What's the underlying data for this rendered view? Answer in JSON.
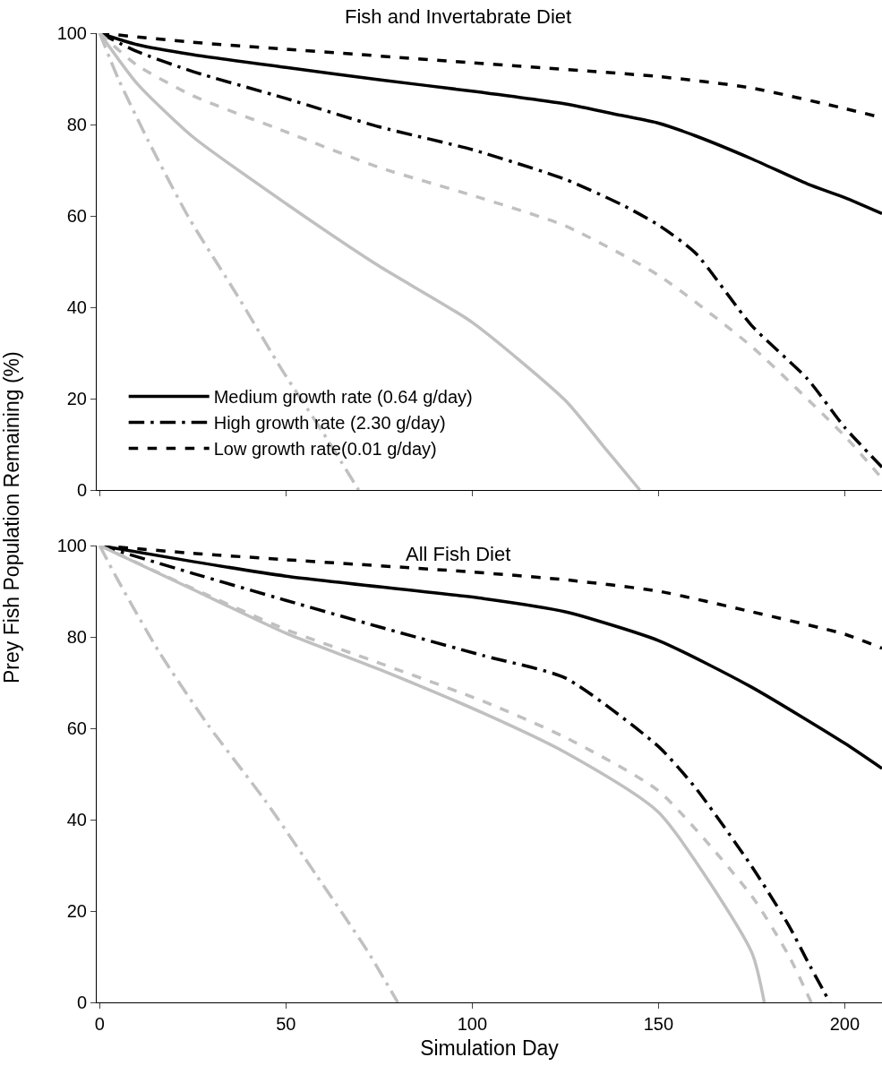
{
  "chart_data": [
    {
      "type": "line",
      "title": "Fish and Invertabrate Diet",
      "ylabel": "Prey Fish Population Remaining (%)",
      "xlim": [
        -0.8,
        210
      ],
      "xticks": [
        0,
        50,
        100,
        150,
        200
      ],
      "ylim": [
        0,
        100
      ],
      "yticks": [
        0,
        20,
        40,
        60,
        80,
        100
      ],
      "tick_labels": "y",
      "legend": "bottom left",
      "marker": "none",
      "series": [
        {
          "name": "Medium growth rate (0.64 g/day)",
          "color": "#000000",
          "line_style": "solid",
          "x": [
            0,
            10,
            25,
            50,
            75,
            100,
            125,
            140,
            150,
            160,
            175,
            190,
            200,
            210
          ],
          "values": [
            100,
            97.5,
            95.3,
            92.5,
            89.8,
            87.3,
            84.5,
            82,
            80.3,
            77.5,
            72.5,
            67,
            64,
            60.5
          ]
        },
        {
          "name": "High growth rate (2.30 g/day)",
          "color": "#000000",
          "line_style": "dashdot",
          "x": [
            0,
            10,
            25,
            50,
            75,
            100,
            125,
            140,
            150,
            160,
            175,
            190,
            200,
            210
          ],
          "values": [
            100,
            96,
            91.6,
            85.7,
            79.5,
            74.5,
            68,
            62.5,
            58,
            51.8,
            36,
            24.3,
            13.7,
            5
          ]
        },
        {
          "name": "Low growth rate(0.01 g/day)",
          "color": "#000000",
          "line_style": "dashed",
          "x": [
            0,
            25,
            50,
            100,
            150,
            175,
            200,
            210
          ],
          "values": [
            100,
            98,
            96.5,
            93.5,
            90.5,
            88,
            83.5,
            81.5
          ]
        },
        {
          "color": "#c0c0c0",
          "line_style": "solid",
          "x": [
            0,
            10,
            25,
            50,
            75,
            100,
            125,
            135,
            145
          ],
          "values": [
            100,
            89,
            77.3,
            62.7,
            49,
            36.7,
            19.6,
            9.8,
            0
          ]
        },
        {
          "color": "#c0c0c0",
          "line_style": "dashdot",
          "x": [
            0,
            5,
            13,
            24,
            37,
            49,
            60,
            69.5
          ],
          "values": [
            100,
            90,
            76.5,
            59.5,
            42.5,
            26.2,
            12.5,
            0
          ]
        },
        {
          "color": "#c0c0c0",
          "line_style": "dashed",
          "x": [
            0,
            10,
            25,
            50,
            75,
            100,
            125,
            150,
            175,
            200,
            210
          ],
          "values": [
            100,
            93,
            86.3,
            78.4,
            70.6,
            64.5,
            57.8,
            47,
            31.4,
            11.8,
            2.5
          ]
        }
      ]
    },
    {
      "type": "line",
      "title": "All Fish Diet",
      "xlabel": "Simulation Day",
      "xlim": [
        -0.8,
        210
      ],
      "xticks": [
        0,
        50,
        100,
        150,
        200
      ],
      "ylim": [
        0,
        100
      ],
      "yticks": [
        0,
        20,
        40,
        60,
        80,
        100
      ],
      "marker": "none",
      "series": [
        {
          "color": "#000000",
          "line_style": "solid",
          "x": [
            0,
            25,
            50,
            103,
            125,
            150,
            175,
            200,
            210
          ],
          "values": [
            100,
            96.5,
            93.3,
            88.4,
            85.5,
            79.2,
            69,
            56.7,
            51.2
          ]
        },
        {
          "color": "#000000",
          "line_style": "dashdot",
          "x": [
            0,
            25,
            50,
            75,
            103,
            125,
            150,
            160,
            175,
            185,
            190,
            196
          ],
          "values": [
            100,
            93.9,
            88,
            82.2,
            75.9,
            71,
            56,
            46.9,
            29.8,
            16.8,
            9,
            0
          ]
        },
        {
          "color": "#000000",
          "line_style": "dashed",
          "x": [
            0,
            25,
            50,
            100,
            125,
            150,
            175,
            200,
            210
          ],
          "values": [
            100,
            98.3,
            96.9,
            94.2,
            92.5,
            90,
            85.5,
            80.6,
            77.5
          ]
        },
        {
          "color": "#c0c0c0",
          "line_style": "solid",
          "x": [
            0,
            25,
            50,
            75,
            103,
            125,
            150,
            175,
            178.4
          ],
          "values": [
            100,
            90.4,
            80.8,
            72.9,
            63.3,
            54.7,
            41.6,
            11,
            0
          ]
        },
        {
          "color": "#c0c0c0",
          "line_style": "dashdot",
          "x": [
            0,
            4.3,
            15.8,
            29.2,
            44.3,
            58.2,
            71.6,
            80
          ],
          "values": [
            100,
            93.3,
            76.9,
            60.6,
            44.3,
            27.8,
            11.6,
            0
          ]
        },
        {
          "color": "#c0c0c0",
          "line_style": "dashed",
          "x": [
            0,
            25,
            50,
            75,
            103,
            125,
            150,
            175,
            185,
            191
          ],
          "values": [
            100,
            90.6,
            81.6,
            74.3,
            65.9,
            58,
            46.3,
            23.3,
            10.2,
            0
          ]
        }
      ]
    }
  ]
}
